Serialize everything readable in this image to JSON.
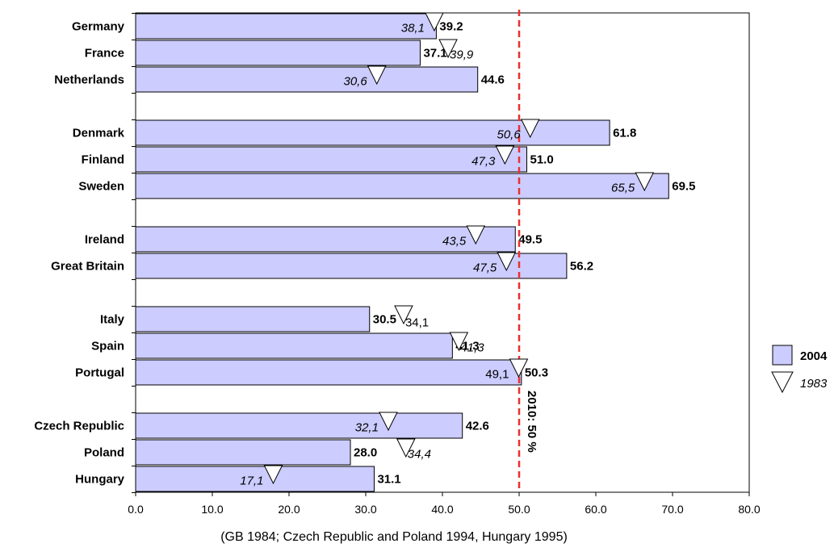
{
  "chart_data": {
    "type": "bar",
    "orientation": "horizontal",
    "categories": [
      "Germany",
      "France",
      "Netherlands",
      "Denmark",
      "Finland",
      "Sweden",
      "Ireland",
      "Great Britain",
      "Italy",
      "Spain",
      "Portugal",
      "Czech Republic",
      "Poland",
      "Hungary"
    ],
    "groups": [
      [
        "Germany",
        "France",
        "Netherlands"
      ],
      [
        "Denmark",
        "Finland",
        "Sweden"
      ],
      [
        "Ireland",
        "Great Britain"
      ],
      [
        "Italy",
        "Spain",
        "Portugal"
      ],
      [
        "Czech Republic",
        "Poland",
        "Hungary"
      ]
    ],
    "series": [
      {
        "name": "2004",
        "marker": "bar",
        "values": [
          39.2,
          37.1,
          44.6,
          61.8,
          51.0,
          69.5,
          49.5,
          56.2,
          30.5,
          41.3,
          50.3,
          42.6,
          28.0,
          31.1
        ],
        "labels": [
          "39.2",
          "37.1",
          "44.6",
          "61.8",
          "51.0",
          "69.5",
          "49.5",
          "56.2",
          "30.5",
          "41.3",
          "50.3",
          "42.6",
          "28.0",
          "31.1"
        ]
      },
      {
        "name": "1983",
        "marker": "triangle-down",
        "values": [
          38.1,
          39.9,
          30.6,
          50.6,
          47.3,
          65.5,
          43.5,
          47.5,
          34.1,
          41.3,
          49.1,
          32.1,
          34.4,
          17.1
        ],
        "labels": [
          "38,1",
          "39,9",
          "30,6",
          "50,6",
          "47,3",
          "65,5",
          "43,5",
          "47,5",
          "34,1",
          "41,3",
          "49,1",
          "32,1",
          "34,4",
          "17,1"
        ]
      }
    ],
    "xlim": [
      0,
      80
    ],
    "xticks": [
      0,
      10,
      20,
      30,
      40,
      50,
      60,
      70,
      80
    ],
    "xtick_labels": [
      "0.0",
      "10.0",
      "20.0",
      "30.0",
      "40.0",
      "50.0",
      "60.0",
      "70.0",
      "80.0"
    ],
    "reference_line": {
      "value": 50,
      "label": "2010: 50 %",
      "color": "#e8312f"
    },
    "legend": {
      "position": "right",
      "entries": [
        "2004",
        "1983"
      ]
    },
    "bar_color": "#ccccff",
    "bar_border_color": "#000000",
    "grid": false,
    "footnote": "(GB 1984; Czech Republic and Poland 1994, Hungary 1995)"
  }
}
